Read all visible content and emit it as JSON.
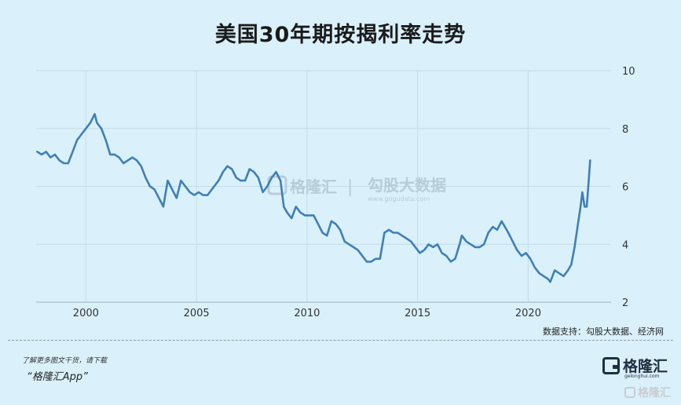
{
  "header": {
    "title": "美国30年期按揭利率走势"
  },
  "source_note": "数据支持：勾股大数据、经济网",
  "footer": {
    "line1": "了解更多图文干货，请下载",
    "line2": "“格隆汇App”",
    "brand": "格隆汇",
    "brand_sub": "gelonghui.com",
    "corner_brand": "格隆汇"
  },
  "watermark": {
    "brand": "格隆汇",
    "divider": "|",
    "text": "勾股大数据",
    "url": "www.gogudata.com"
  },
  "colors": {
    "line": "#3f7fb8",
    "background": "#daf1fb",
    "grid": "#c4dce8"
  },
  "chart_data": {
    "type": "line",
    "title": "美国30年期按揭利率走势",
    "xlabel": "",
    "ylabel": "",
    "xlim": [
      1997.75,
      2023.75
    ],
    "ylim": [
      2,
      10
    ],
    "xticks": [
      2000,
      2005,
      2010,
      2015,
      2020
    ],
    "yticks": [
      2,
      4,
      6,
      8,
      10
    ],
    "grid": true,
    "y_axis_side": "right",
    "series": [
      {
        "points": [
          [
            1997.8,
            7.2
          ],
          [
            1998.0,
            7.1
          ],
          [
            1998.2,
            7.2
          ],
          [
            1998.4,
            7.0
          ],
          [
            1998.6,
            7.1
          ],
          [
            1998.8,
            6.9
          ],
          [
            1999.0,
            6.8
          ],
          [
            1999.2,
            6.8
          ],
          [
            1999.4,
            7.2
          ],
          [
            1999.6,
            7.6
          ],
          [
            1999.8,
            7.8
          ],
          [
            2000.0,
            8.0
          ],
          [
            2000.2,
            8.2
          ],
          [
            2000.4,
            8.5
          ],
          [
            2000.5,
            8.2
          ],
          [
            2000.7,
            8.0
          ],
          [
            2000.9,
            7.6
          ],
          [
            2001.1,
            7.1
          ],
          [
            2001.3,
            7.1
          ],
          [
            2001.5,
            7.0
          ],
          [
            2001.7,
            6.8
          ],
          [
            2001.9,
            6.9
          ],
          [
            2002.1,
            7.0
          ],
          [
            2002.3,
            6.9
          ],
          [
            2002.5,
            6.7
          ],
          [
            2002.7,
            6.3
          ],
          [
            2002.9,
            6.0
          ],
          [
            2003.1,
            5.9
          ],
          [
            2003.3,
            5.6
          ],
          [
            2003.5,
            5.3
          ],
          [
            2003.7,
            6.2
          ],
          [
            2003.9,
            5.9
          ],
          [
            2004.1,
            5.6
          ],
          [
            2004.3,
            6.2
          ],
          [
            2004.5,
            6.0
          ],
          [
            2004.7,
            5.8
          ],
          [
            2004.9,
            5.7
          ],
          [
            2005.1,
            5.8
          ],
          [
            2005.3,
            5.7
          ],
          [
            2005.5,
            5.7
          ],
          [
            2005.8,
            6.0
          ],
          [
            2006.0,
            6.2
          ],
          [
            2006.2,
            6.5
          ],
          [
            2006.4,
            6.7
          ],
          [
            2006.6,
            6.6
          ],
          [
            2006.8,
            6.3
          ],
          [
            2007.0,
            6.2
          ],
          [
            2007.2,
            6.2
          ],
          [
            2007.4,
            6.6
          ],
          [
            2007.6,
            6.5
          ],
          [
            2007.8,
            6.3
          ],
          [
            2008.0,
            5.8
          ],
          [
            2008.2,
            6.0
          ],
          [
            2008.4,
            6.3
          ],
          [
            2008.6,
            6.5
          ],
          [
            2008.8,
            6.2
          ],
          [
            2008.95,
            5.3
          ],
          [
            2009.1,
            5.1
          ],
          [
            2009.3,
            4.9
          ],
          [
            2009.5,
            5.3
          ],
          [
            2009.7,
            5.1
          ],
          [
            2009.9,
            5.0
          ],
          [
            2010.1,
            5.0
          ],
          [
            2010.3,
            5.0
          ],
          [
            2010.5,
            4.7
          ],
          [
            2010.7,
            4.4
          ],
          [
            2010.9,
            4.3
          ],
          [
            2011.1,
            4.8
          ],
          [
            2011.3,
            4.7
          ],
          [
            2011.5,
            4.5
          ],
          [
            2011.7,
            4.1
          ],
          [
            2011.9,
            4.0
          ],
          [
            2012.1,
            3.9
          ],
          [
            2012.3,
            3.8
          ],
          [
            2012.5,
            3.6
          ],
          [
            2012.7,
            3.4
          ],
          [
            2012.9,
            3.4
          ],
          [
            2013.1,
            3.5
          ],
          [
            2013.3,
            3.5
          ],
          [
            2013.5,
            4.4
          ],
          [
            2013.7,
            4.5
          ],
          [
            2013.9,
            4.4
          ],
          [
            2014.1,
            4.4
          ],
          [
            2014.3,
            4.3
          ],
          [
            2014.5,
            4.2
          ],
          [
            2014.7,
            4.1
          ],
          [
            2014.9,
            3.9
          ],
          [
            2015.1,
            3.7
          ],
          [
            2015.3,
            3.8
          ],
          [
            2015.5,
            4.0
          ],
          [
            2015.7,
            3.9
          ],
          [
            2015.9,
            4.0
          ],
          [
            2016.1,
            3.7
          ],
          [
            2016.3,
            3.6
          ],
          [
            2016.5,
            3.4
          ],
          [
            2016.7,
            3.5
          ],
          [
            2016.9,
            4.0
          ],
          [
            2017.0,
            4.3
          ],
          [
            2017.2,
            4.1
          ],
          [
            2017.4,
            4.0
          ],
          [
            2017.6,
            3.9
          ],
          [
            2017.8,
            3.9
          ],
          [
            2018.0,
            4.0
          ],
          [
            2018.2,
            4.4
          ],
          [
            2018.4,
            4.6
          ],
          [
            2018.6,
            4.5
          ],
          [
            2018.8,
            4.8
          ],
          [
            2018.95,
            4.6
          ],
          [
            2019.1,
            4.4
          ],
          [
            2019.3,
            4.1
          ],
          [
            2019.5,
            3.8
          ],
          [
            2019.7,
            3.6
          ],
          [
            2019.9,
            3.7
          ],
          [
            2020.1,
            3.5
          ],
          [
            2020.3,
            3.2
          ],
          [
            2020.5,
            3.0
          ],
          [
            2020.7,
            2.9
          ],
          [
            2020.9,
            2.8
          ],
          [
            2021.0,
            2.7
          ],
          [
            2021.2,
            3.1
          ],
          [
            2021.4,
            3.0
          ],
          [
            2021.6,
            2.9
          ],
          [
            2021.8,
            3.1
          ],
          [
            2021.95,
            3.3
          ],
          [
            2022.1,
            3.9
          ],
          [
            2022.25,
            4.7
          ],
          [
            2022.35,
            5.2
          ],
          [
            2022.45,
            5.8
          ],
          [
            2022.55,
            5.3
          ],
          [
            2022.65,
            5.3
          ],
          [
            2022.75,
            6.3
          ],
          [
            2022.8,
            6.9
          ]
        ]
      }
    ]
  }
}
